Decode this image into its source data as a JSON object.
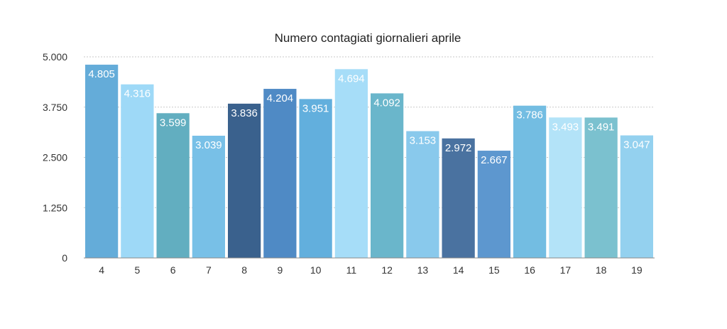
{
  "chart_data": {
    "type": "bar",
    "title": "Numero contagiati giornalieri aprile",
    "xlabel": "",
    "ylabel": "",
    "categories": [
      "4",
      "5",
      "6",
      "7",
      "8",
      "9",
      "10",
      "11",
      "12",
      "13",
      "14",
      "15",
      "16",
      "17",
      "18",
      "19"
    ],
    "values": [
      4805,
      4316,
      3599,
      3039,
      3836,
      4204,
      3951,
      4694,
      4092,
      3153,
      2972,
      2667,
      3786,
      3493,
      3491,
      3047
    ],
    "value_labels": [
      "4.805",
      "4.316",
      "3.599",
      "3.039",
      "3.836",
      "4.204",
      "3.951",
      "4.694",
      "4.092",
      "3.153",
      "2.972",
      "2.667",
      "3.786",
      "3.493",
      "3.491",
      "3.047"
    ],
    "bar_colors": [
      "#64acd9",
      "#9ed9f7",
      "#62aec0",
      "#78c0e7",
      "#3a618d",
      "#4f8ac5",
      "#62afdd",
      "#a6ddf8",
      "#6ab6cb",
      "#89c9ec",
      "#4a72a0",
      "#5d97cf",
      "#73bde2",
      "#b3e3f8",
      "#7bc1cf",
      "#94d1ef"
    ],
    "ylim": [
      0,
      5000
    ],
    "yticks": [
      0,
      1250,
      2500,
      3750,
      5000
    ],
    "ytick_labels": [
      "0",
      "1.250",
      "2.500",
      "3.750",
      "5.000"
    ],
    "grid": true,
    "legend": "none"
  }
}
